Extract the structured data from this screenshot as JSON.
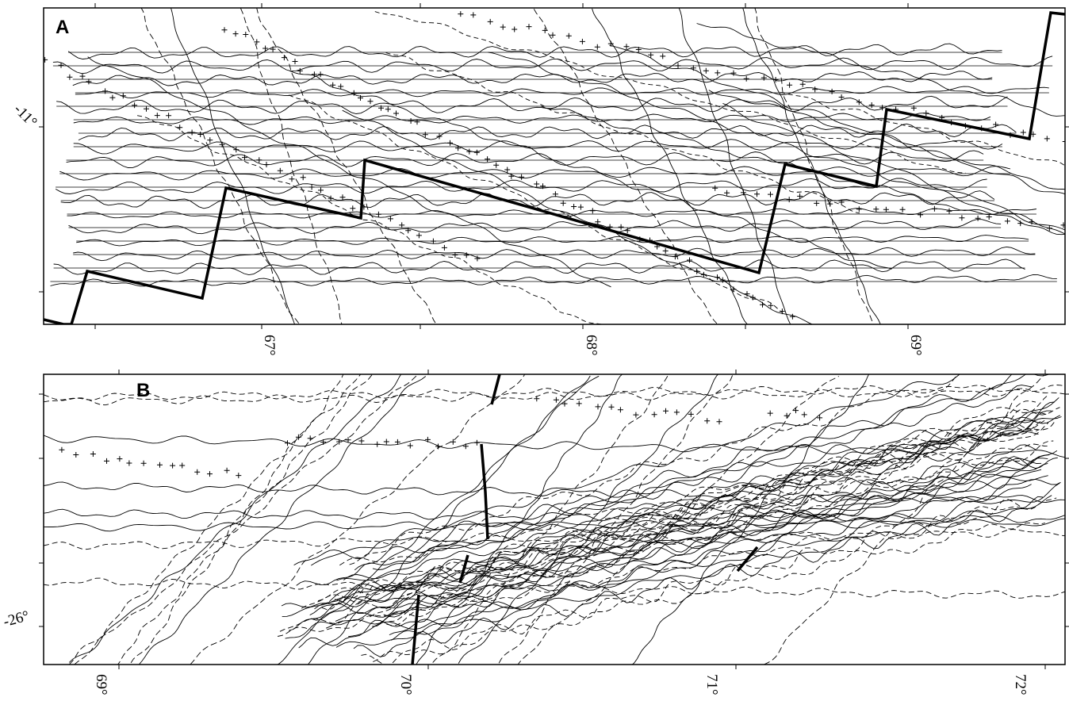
{
  "panels": [
    {
      "label": "A",
      "x_ticks": [
        "67°",
        "68°",
        "69°"
      ],
      "y_ticks": [
        "-11°"
      ]
    },
    {
      "label": "B",
      "x_ticks": [
        "69°",
        "70°",
        "71°",
        "72°"
      ],
      "y_ticks": [
        "-26°"
      ]
    }
  ]
}
